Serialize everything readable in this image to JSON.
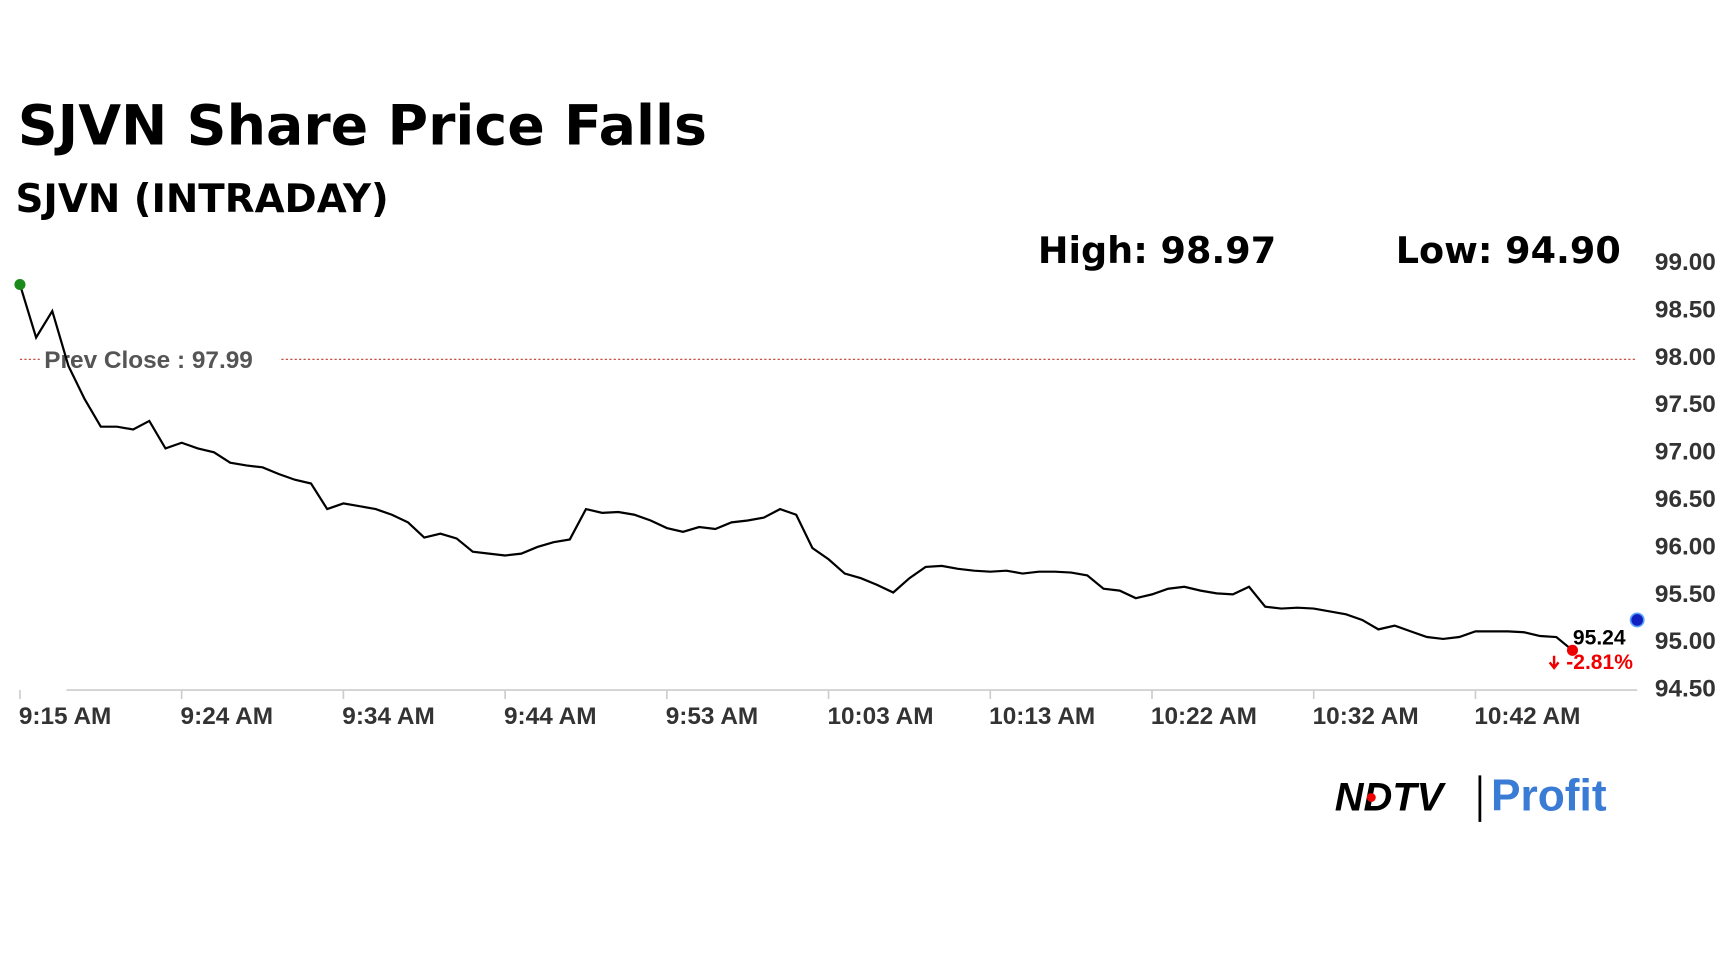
{
  "chart_data": {
    "type": "line",
    "title": "SJVN Share Price Falls",
    "subtitle": "SJVN (INTRADAY)",
    "high": {
      "value": 98.97,
      "label": "High: 98.97"
    },
    "low": {
      "value": 94.9,
      "label": "Low: 94.90"
    },
    "prev_close": {
      "value": 97.99,
      "label": "Prev Close : 97.99"
    },
    "last": {
      "value": 95.24,
      "label": "95.24",
      "change": "-2.81%"
    },
    "branding": {
      "ndtv": "NDTV",
      "profit": "Profit"
    },
    "categories": [
      "9:15 AM",
      null,
      null,
      null,
      null,
      null,
      null,
      null,
      null,
      null,
      "9:24 AM",
      null,
      null,
      null,
      null,
      null,
      null,
      null,
      null,
      null,
      "9:34 AM",
      null,
      null,
      null,
      null,
      null,
      null,
      null,
      null,
      null,
      "9:44 AM",
      null,
      null,
      null,
      null,
      null,
      null,
      null,
      null,
      null,
      "9:53 AM",
      null,
      null,
      null,
      null,
      null,
      null,
      null,
      null,
      null,
      "10:03 AM",
      null,
      null,
      null,
      null,
      null,
      null,
      null,
      null,
      null,
      "10:13 AM",
      null,
      null,
      null,
      null,
      null,
      null,
      null,
      null,
      null,
      "10:22 AM",
      null,
      null,
      null,
      null,
      null,
      null,
      null,
      null,
      null,
      "10:32 AM",
      null,
      null,
      null,
      null,
      null,
      null,
      null,
      null,
      null,
      "10:42 AM",
      null,
      null,
      null,
      null,
      null,
      null,
      null,
      null,
      null,
      null
    ],
    "series": [
      {
        "name": "SJVN",
        "color": "#000000",
        "values": [
          98.78,
          98.22,
          98.5,
          97.92,
          97.57,
          97.28,
          97.28,
          97.25,
          97.34,
          97.05,
          97.11,
          97.05,
          97.01,
          96.9,
          96.87,
          96.85,
          96.78,
          96.72,
          96.68,
          96.41,
          96.47,
          96.44,
          96.41,
          96.35,
          96.27,
          96.11,
          96.15,
          96.1,
          95.96,
          95.94,
          95.92,
          95.94,
          96.01,
          96.06,
          96.09,
          96.41,
          96.37,
          96.38,
          96.35,
          96.29,
          96.21,
          96.17,
          96.22,
          96.2,
          96.27,
          96.29,
          96.32,
          96.41,
          96.35,
          96.0,
          95.88,
          95.73,
          95.68,
          95.61,
          95.53,
          95.68,
          95.8,
          95.81,
          95.78,
          95.76,
          95.75,
          95.76,
          95.73,
          95.75,
          95.75,
          95.74,
          95.71,
          95.57,
          95.55,
          95.47,
          95.51,
          95.57,
          95.59,
          95.55,
          95.52,
          95.51,
          95.59,
          95.38,
          95.36,
          95.37,
          95.36,
          95.33,
          95.3,
          95.24,
          95.14,
          95.18,
          95.12,
          95.06,
          95.04,
          95.06,
          95.12,
          95.12,
          95.12,
          95.11,
          95.07,
          95.06,
          94.92,
          null,
          null,
          null,
          null
        ]
      }
    ],
    "ylim": [
      94.5,
      99.0
    ],
    "yticks": [
      {
        "value": 94.5,
        "label": "94.50"
      },
      {
        "value": 95.0,
        "label": "95.00"
      },
      {
        "value": 95.5,
        "label": "95.50"
      },
      {
        "value": 96.0,
        "label": "96.00"
      },
      {
        "value": 96.5,
        "label": "96.50"
      },
      {
        "value": 97.0,
        "label": "97.00"
      },
      {
        "value": 97.5,
        "label": "97.50"
      },
      {
        "value": 98.0,
        "label": "98.00"
      },
      {
        "value": 98.5,
        "label": "98.50"
      },
      {
        "value": 99.0,
        "label": "99.00"
      }
    ],
    "grid": false
  }
}
